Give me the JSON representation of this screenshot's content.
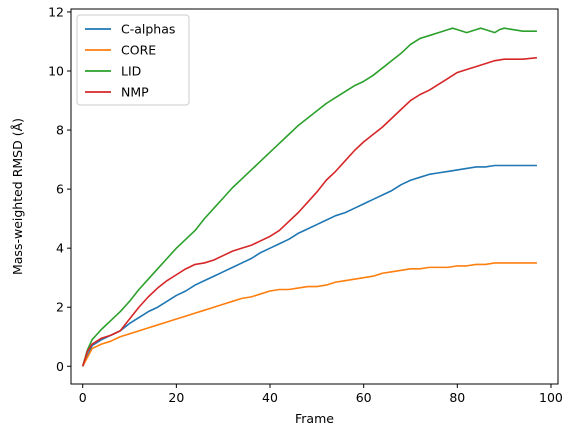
{
  "chart_data": {
    "type": "line",
    "xlabel": "Frame",
    "ylabel": "Mass-weighted RMSD (Å)",
    "xlim": [
      -2.5,
      101.5
    ],
    "ylim": [
      -0.6,
      12.1
    ],
    "xticks": [
      0,
      20,
      40,
      60,
      80,
      100
    ],
    "yticks": [
      0,
      2,
      4,
      6,
      8,
      10,
      12
    ],
    "legend_position": "top-left",
    "grid": false,
    "series": [
      {
        "name": "C-alphas",
        "color": "#1f77b4",
        "x": [
          0,
          2,
          4,
          6,
          8,
          10,
          12,
          14,
          16,
          18,
          20,
          22,
          24,
          26,
          28,
          30,
          32,
          34,
          36,
          38,
          40,
          42,
          44,
          46,
          48,
          50,
          52,
          54,
          56,
          58,
          60,
          62,
          64,
          66,
          68,
          70,
          72,
          74,
          76,
          78,
          80,
          82,
          84,
          86,
          88,
          90,
          92,
          94,
          97
        ],
        "y": [
          0,
          0.7,
          0.9,
          1.05,
          1.2,
          1.45,
          1.65,
          1.85,
          2.0,
          2.2,
          2.4,
          2.55,
          2.75,
          2.9,
          3.05,
          3.2,
          3.35,
          3.5,
          3.65,
          3.85,
          4.0,
          4.15,
          4.3,
          4.5,
          4.65,
          4.8,
          4.95,
          5.1,
          5.2,
          5.35,
          5.5,
          5.65,
          5.8,
          5.95,
          6.15,
          6.3,
          6.4,
          6.5,
          6.55,
          6.6,
          6.65,
          6.7,
          6.75,
          6.75,
          6.8,
          6.8,
          6.8,
          6.8,
          6.8
        ]
      },
      {
        "name": "CORE",
        "color": "#ff7f0e",
        "x": [
          0,
          2,
          4,
          6,
          8,
          10,
          12,
          14,
          16,
          18,
          20,
          22,
          24,
          26,
          28,
          30,
          32,
          34,
          36,
          38,
          40,
          42,
          44,
          46,
          48,
          50,
          52,
          54,
          56,
          58,
          60,
          62,
          64,
          66,
          68,
          70,
          72,
          74,
          76,
          78,
          80,
          82,
          84,
          86,
          88,
          90,
          92,
          94,
          97
        ],
        "y": [
          0,
          0.6,
          0.75,
          0.85,
          1.0,
          1.1,
          1.2,
          1.3,
          1.4,
          1.5,
          1.6,
          1.7,
          1.8,
          1.9,
          2.0,
          2.1,
          2.2,
          2.3,
          2.35,
          2.45,
          2.55,
          2.6,
          2.6,
          2.65,
          2.7,
          2.7,
          2.75,
          2.85,
          2.9,
          2.95,
          3.0,
          3.05,
          3.15,
          3.2,
          3.25,
          3.3,
          3.3,
          3.35,
          3.35,
          3.35,
          3.4,
          3.4,
          3.45,
          3.45,
          3.5,
          3.5,
          3.5,
          3.5,
          3.5
        ]
      },
      {
        "name": "LID",
        "color": "#2ca02c",
        "x": [
          0,
          1,
          2,
          4,
          6,
          8,
          10,
          12,
          14,
          16,
          18,
          20,
          22,
          24,
          26,
          28,
          30,
          32,
          34,
          36,
          38,
          40,
          42,
          44,
          46,
          48,
          50,
          52,
          54,
          56,
          58,
          60,
          62,
          64,
          66,
          68,
          70,
          72,
          74,
          76,
          78,
          79,
          80,
          82,
          84,
          85,
          86,
          88,
          89,
          90,
          92,
          94,
          97
        ],
        "y": [
          0,
          0.55,
          0.9,
          1.25,
          1.55,
          1.85,
          2.2,
          2.6,
          2.95,
          3.3,
          3.65,
          4.0,
          4.3,
          4.6,
          5.0,
          5.35,
          5.7,
          6.05,
          6.35,
          6.65,
          6.95,
          7.25,
          7.55,
          7.85,
          8.15,
          8.4,
          8.65,
          8.9,
          9.1,
          9.3,
          9.5,
          9.65,
          9.85,
          10.1,
          10.35,
          10.6,
          10.9,
          11.1,
          11.2,
          11.3,
          11.4,
          11.45,
          11.4,
          11.3,
          11.4,
          11.45,
          11.4,
          11.3,
          11.4,
          11.45,
          11.4,
          11.35,
          11.35
        ]
      },
      {
        "name": "NMP",
        "color": "#d62728",
        "x": [
          0,
          1,
          2,
          4,
          6,
          8,
          10,
          12,
          14,
          16,
          18,
          20,
          22,
          24,
          26,
          28,
          30,
          32,
          34,
          36,
          38,
          40,
          42,
          44,
          46,
          48,
          50,
          52,
          54,
          56,
          58,
          60,
          62,
          64,
          66,
          68,
          70,
          72,
          74,
          76,
          78,
          80,
          82,
          84,
          86,
          88,
          90,
          92,
          94,
          97
        ],
        "y": [
          0,
          0.5,
          0.75,
          0.95,
          1.05,
          1.2,
          1.6,
          2.0,
          2.35,
          2.65,
          2.9,
          3.1,
          3.3,
          3.45,
          3.5,
          3.6,
          3.75,
          3.9,
          4.0,
          4.1,
          4.25,
          4.4,
          4.6,
          4.9,
          5.2,
          5.55,
          5.9,
          6.3,
          6.6,
          6.95,
          7.3,
          7.6,
          7.85,
          8.1,
          8.4,
          8.7,
          9.0,
          9.2,
          9.35,
          9.55,
          9.75,
          9.95,
          10.05,
          10.15,
          10.25,
          10.35,
          10.4,
          10.4,
          10.4,
          10.45
        ]
      }
    ]
  }
}
